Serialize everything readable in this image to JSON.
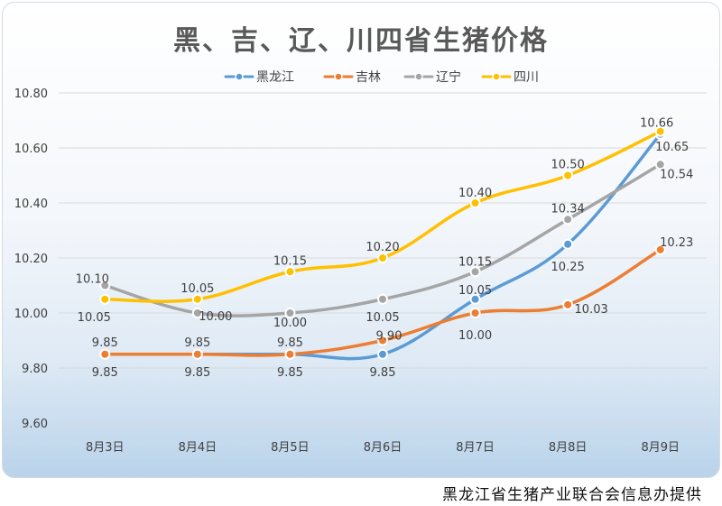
{
  "chart_data": {
    "type": "line",
    "title": "黑、吉、辽、川四省生猪价格",
    "categories": [
      "8月3日",
      "8月4日",
      "8月5日",
      "8月6日",
      "8月7日",
      "8月8日",
      "8月9日"
    ],
    "ylim": [
      9.6,
      10.8
    ],
    "yticks": [
      "9.60",
      "9.80",
      "10.00",
      "10.20",
      "10.40",
      "10.60",
      "10.80"
    ],
    "grid": true,
    "legend_position": "top-center",
    "smooth": true,
    "series": [
      {
        "name": "黑龙江",
        "color": "#5b9bd5",
        "values": [
          9.85,
          9.85,
          9.85,
          9.85,
          10.05,
          10.25,
          10.65
        ],
        "labels": [
          "9.85",
          "9.85",
          "9.85",
          "9.85",
          "10.05",
          "10.25",
          "10.65"
        ]
      },
      {
        "name": "吉林",
        "color": "#ed7d31",
        "values": [
          9.85,
          9.85,
          9.85,
          9.9,
          10.0,
          10.03,
          10.23
        ],
        "labels": [
          "9.85",
          "9.85",
          "9.85",
          "9.90",
          "10.00",
          "10.03",
          "10.23"
        ]
      },
      {
        "name": "辽宁",
        "color": "#a5a5a5",
        "values": [
          10.1,
          10.0,
          10.0,
          10.05,
          10.15,
          10.34,
          10.54
        ],
        "labels": [
          "10.10",
          "10.00",
          "10.00",
          "10.05",
          "10.15",
          "10.34",
          "10.54"
        ]
      },
      {
        "name": "四川",
        "color": "#ffc000",
        "values": [
          10.05,
          10.05,
          10.15,
          10.2,
          10.4,
          10.5,
          10.66
        ],
        "labels": [
          "10.05",
          "10.05",
          "10.15",
          "10.20",
          "10.40",
          "10.50",
          "10.66"
        ]
      }
    ]
  },
  "footer": {
    "credit": "黑龙江省生猪产业联合会信息办提供"
  }
}
